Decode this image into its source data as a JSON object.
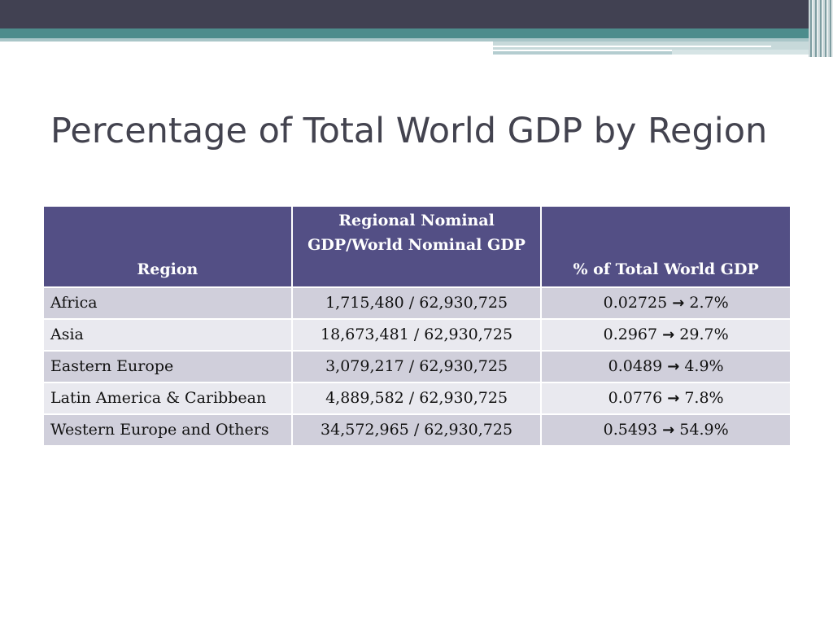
{
  "slide": {
    "title": "Percentage of Total World GDP by Region"
  },
  "table": {
    "headers": {
      "region": "Region",
      "ratio": "Regional Nominal GDP/World Nominal GDP",
      "pct": "% of Total World GDP"
    },
    "arrow_glyph": "→",
    "rows": [
      {
        "region": "Africa",
        "ratio": "1,715,480 / 62,930,725",
        "fraction": "0.02725",
        "percent": "2.7%"
      },
      {
        "region": "Asia",
        "ratio": "18,673,481 / 62,930,725",
        "fraction": "0.2967",
        "percent": "29.7%"
      },
      {
        "region": "Eastern Europe",
        "ratio": "3,079,217 / 62,930,725",
        "fraction": "0.0489",
        "percent": "4.9%"
      },
      {
        "region": "Latin America & Caribbean",
        "ratio": "4,889,582 / 62,930,725",
        "fraction": "0.0776",
        "percent": "7.8%"
      },
      {
        "region": "Western Europe and Others",
        "ratio": "34,572,965 / 62,930,725",
        "fraction": "0.5493",
        "percent": "54.9%"
      }
    ]
  },
  "colors": {
    "header_bg": "#534f85",
    "row_odd": "#d0cfdb",
    "row_even": "#e9e9ef",
    "title": "#43434f",
    "banner_dark": "#414152",
    "banner_teal": "#4d8c8c"
  }
}
